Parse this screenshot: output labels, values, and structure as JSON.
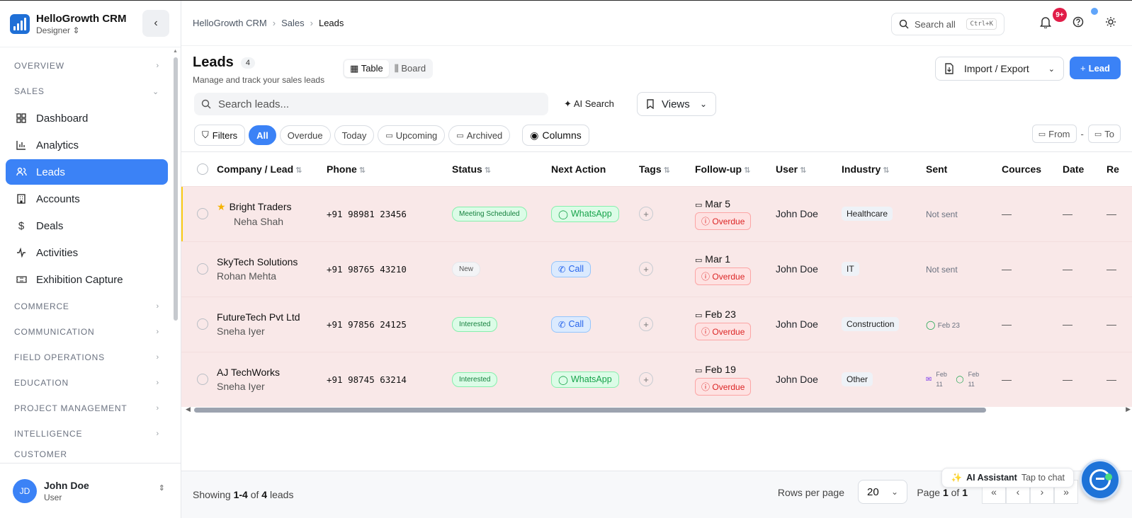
{
  "app": {
    "name": "HelloGrowth CRM",
    "role": "Designer"
  },
  "sidebar": {
    "sections": {
      "overview": "OVERVIEW",
      "sales": "SALES",
      "commerce": "COMMERCE",
      "communication": "COMMUNICATION",
      "field_operations": "FIELD OPERATIONS",
      "education": "EDUCATION",
      "project_management": "PROJECT MANAGEMENT",
      "intelligence": "INTELLIGENCE",
      "customer": "CUSTOMER"
    },
    "items": [
      {
        "label": "Dashboard",
        "icon": "dashboard-icon"
      },
      {
        "label": "Analytics",
        "icon": "analytics-icon"
      },
      {
        "label": "Leads",
        "icon": "users-icon",
        "active": true
      },
      {
        "label": "Accounts",
        "icon": "building-icon"
      },
      {
        "label": "Deals",
        "icon": "dollar-icon"
      },
      {
        "label": "Activities",
        "icon": "activity-icon"
      },
      {
        "label": "Exhibition Capture",
        "icon": "ticket-icon"
      }
    ],
    "user": {
      "initials": "JD",
      "name": "John Doe",
      "role": "User"
    }
  },
  "topbar": {
    "breadcrumb": [
      "HelloGrowth CRM",
      "Sales",
      "Leads"
    ],
    "search_label": "Search all",
    "search_shortcut": "Ctrl+K",
    "notif_badge": "9+"
  },
  "page": {
    "title": "Leads",
    "count": "4",
    "subtitle": "Manage and track your sales leads",
    "view_table": "Table",
    "view_board": "Board",
    "import_export": "Import / Export",
    "new_lead": "Lead",
    "search_placeholder": "Search leads...",
    "ai_search": "AI Search",
    "views": "Views",
    "filters": "Filters",
    "chips": [
      "All",
      "Overdue",
      "Today",
      "Upcoming",
      "Archived"
    ],
    "columns_btn": "Columns",
    "date_from": "From",
    "date_to": "To"
  },
  "table": {
    "columns": [
      "Company / Lead",
      "Phone",
      "Status",
      "Next Action",
      "Tags",
      "Follow-up",
      "User",
      "Industry",
      "Sent",
      "Cources",
      "Date",
      "Re"
    ],
    "rows": [
      {
        "company": "Bright Traders",
        "lead": "Neha Shah",
        "starred": true,
        "phone": "+91 98981 23456",
        "status": "Meeting Scheduled",
        "action": "WhatsApp",
        "followup": "Mar 5",
        "overdue": "Overdue",
        "user": "John Doe",
        "industry": "Healthcare",
        "sent": "Not sent",
        "cources": "—",
        "date": "—",
        "re": "—"
      },
      {
        "company": "SkyTech Solutions",
        "lead": "Rohan Mehta",
        "starred": false,
        "phone": "+91 98765 43210",
        "status": "New",
        "action": "Call",
        "followup": "Mar 1",
        "overdue": "Overdue",
        "user": "John Doe",
        "industry": "IT",
        "sent": "Not sent",
        "cources": "—",
        "date": "—",
        "re": "—"
      },
      {
        "company": "FutureTech Pvt Ltd",
        "lead": "Sneha Iyer",
        "starred": false,
        "phone": "+91 97856 24125",
        "status": "Interested",
        "action": "Call",
        "followup": "Feb 23",
        "overdue": "Overdue",
        "user": "John Doe",
        "industry": "Construction",
        "sent": "Feb 23",
        "cources": "—",
        "date": "—",
        "re": "—"
      },
      {
        "company": "AJ TechWorks",
        "lead": "Sneha Iyer",
        "starred": false,
        "phone": "+91 98745 63214",
        "status": "Interested",
        "action": "WhatsApp",
        "followup": "Feb 19",
        "overdue": "Overdue",
        "user": "John Doe",
        "industry": "Other",
        "sent_email": "Feb 11",
        "sent_wa": "Feb 11",
        "cources": "—",
        "date": "—",
        "re": "—"
      }
    ]
  },
  "footer": {
    "showing_prefix": "Showing",
    "showing_range": "1-4",
    "showing_of": "of",
    "showing_total": "4",
    "showing_suffix": "leads",
    "rows_per_page_label": "Rows per page",
    "rows_per_page": "20",
    "page_label": "Page",
    "page_current": "1",
    "page_of": "of",
    "page_total": "1"
  },
  "assistant": {
    "label": "AI Assistant",
    "tap": "Tap to chat"
  },
  "colors": {
    "accent": "#3b82f6",
    "row_overdue_bg": "#f9e8e8",
    "danger": "#dc2626",
    "success": "#16a34a"
  }
}
